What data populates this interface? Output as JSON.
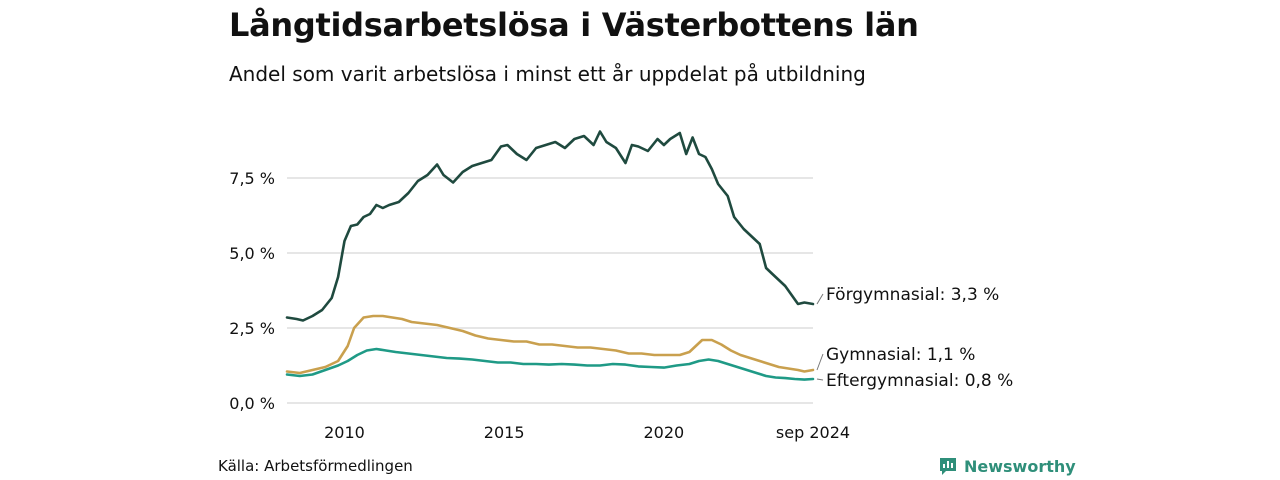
{
  "chart_data": {
    "type": "line",
    "title": "Långtidsarbetslösa i Västerbottens län",
    "subtitle": "Andel som varit arbetslösa i minst ett år uppdelat på utbildning",
    "y_ticks": [
      "0,0 %",
      "2,5 %",
      "5,0 %",
      "7,5 %"
    ],
    "y_tick_values": [
      0,
      2.5,
      5.0,
      7.5
    ],
    "x_ticks": [
      "2010",
      "2015",
      "2020",
      "sep 2024"
    ],
    "x_tick_values": [
      2010,
      2015,
      2020,
      2024.67
    ],
    "xlim": [
      2008.2,
      2024.67
    ],
    "ylim": [
      0,
      9.5
    ],
    "grid": true,
    "series": [
      {
        "name": "Förgymnasial",
        "end_label": "Förgymnasial: 3,3 %",
        "color": "#1f4a3f",
        "x": [
          2008.2,
          2008.5,
          2008.7,
          2009.0,
          2009.3,
          2009.6,
          2009.8,
          2010.0,
          2010.2,
          2010.4,
          2010.6,
          2010.8,
          2011.0,
          2011.2,
          2011.4,
          2011.7,
          2012.0,
          2012.3,
          2012.6,
          2012.9,
          2013.1,
          2013.4,
          2013.7,
          2014.0,
          2014.3,
          2014.6,
          2014.9,
          2015.1,
          2015.4,
          2015.7,
          2016.0,
          2016.3,
          2016.6,
          2016.9,
          2017.2,
          2017.5,
          2017.8,
          2018.0,
          2018.2,
          2018.5,
          2018.8,
          2019.0,
          2019.2,
          2019.5,
          2019.8,
          2020.0,
          2020.2,
          2020.5,
          2020.7,
          2020.9,
          2021.1,
          2021.3,
          2021.5,
          2021.7,
          2022.0,
          2022.2,
          2022.5,
          2022.7,
          2023.0,
          2023.2,
          2023.4,
          2023.6,
          2023.8,
          2024.0,
          2024.2,
          2024.4,
          2024.67
        ],
        "values": [
          2.85,
          2.8,
          2.75,
          2.9,
          3.1,
          3.5,
          4.2,
          5.4,
          5.9,
          5.95,
          6.2,
          6.3,
          6.6,
          6.5,
          6.6,
          6.7,
          7.0,
          7.4,
          7.6,
          7.95,
          7.6,
          7.35,
          7.7,
          7.9,
          8.0,
          8.1,
          8.55,
          8.6,
          8.3,
          8.1,
          8.5,
          8.6,
          8.7,
          8.5,
          8.8,
          8.9,
          8.6,
          9.05,
          8.7,
          8.5,
          8.0,
          8.6,
          8.55,
          8.4,
          8.8,
          8.6,
          8.8,
          9.0,
          8.3,
          8.85,
          8.3,
          8.2,
          7.8,
          7.3,
          6.9,
          6.2,
          5.8,
          5.6,
          5.3,
          4.5,
          4.3,
          4.1,
          3.9,
          3.6,
          3.3,
          3.35,
          3.3
        ]
      },
      {
        "name": "Gymnasial",
        "end_label": "Gymnasial: 1,1 %",
        "color": "#c9a04e",
        "x": [
          2008.2,
          2008.6,
          2009.0,
          2009.4,
          2009.8,
          2010.1,
          2010.3,
          2010.6,
          2010.9,
          2011.2,
          2011.5,
          2011.8,
          2012.1,
          2012.5,
          2012.9,
          2013.3,
          2013.7,
          2014.1,
          2014.5,
          2014.9,
          2015.3,
          2015.7,
          2016.1,
          2016.5,
          2016.9,
          2017.3,
          2017.7,
          2018.1,
          2018.5,
          2018.9,
          2019.3,
          2019.7,
          2020.1,
          2020.5,
          2020.8,
          2021.0,
          2021.2,
          2021.5,
          2021.8,
          2022.1,
          2022.4,
          2022.7,
          2023.0,
          2023.3,
          2023.6,
          2023.9,
          2024.2,
          2024.4,
          2024.67
        ],
        "values": [
          1.05,
          1.0,
          1.1,
          1.2,
          1.4,
          1.9,
          2.5,
          2.85,
          2.9,
          2.9,
          2.85,
          2.8,
          2.7,
          2.65,
          2.6,
          2.5,
          2.4,
          2.25,
          2.15,
          2.1,
          2.05,
          2.05,
          1.95,
          1.95,
          1.9,
          1.85,
          1.85,
          1.8,
          1.75,
          1.65,
          1.65,
          1.6,
          1.6,
          1.6,
          1.7,
          1.9,
          2.1,
          2.1,
          1.95,
          1.75,
          1.6,
          1.5,
          1.4,
          1.3,
          1.2,
          1.15,
          1.1,
          1.05,
          1.1
        ]
      },
      {
        "name": "Eftergymnasial",
        "end_label": "Eftergymnasial: 0,8 %",
        "color": "#1f9a86",
        "x": [
          2008.2,
          2008.6,
          2009.0,
          2009.4,
          2009.8,
          2010.1,
          2010.4,
          2010.7,
          2011.0,
          2011.3,
          2011.6,
          2012.0,
          2012.4,
          2012.8,
          2013.2,
          2013.6,
          2014.0,
          2014.4,
          2014.8,
          2015.2,
          2015.6,
          2016.0,
          2016.4,
          2016.8,
          2017.2,
          2017.6,
          2018.0,
          2018.4,
          2018.8,
          2019.2,
          2019.6,
          2020.0,
          2020.4,
          2020.8,
          2021.1,
          2021.4,
          2021.7,
          2022.0,
          2022.3,
          2022.6,
          2022.9,
          2023.2,
          2023.5,
          2023.8,
          2024.1,
          2024.4,
          2024.67
        ],
        "values": [
          0.95,
          0.9,
          0.95,
          1.1,
          1.25,
          1.4,
          1.6,
          1.75,
          1.8,
          1.75,
          1.7,
          1.65,
          1.6,
          1.55,
          1.5,
          1.48,
          1.45,
          1.4,
          1.35,
          1.35,
          1.3,
          1.3,
          1.28,
          1.3,
          1.28,
          1.25,
          1.25,
          1.3,
          1.28,
          1.22,
          1.2,
          1.18,
          1.25,
          1.3,
          1.4,
          1.45,
          1.4,
          1.3,
          1.2,
          1.1,
          1.0,
          0.9,
          0.85,
          0.83,
          0.8,
          0.78,
          0.8
        ]
      }
    ]
  },
  "source": "Källa: Arbetsförmedlingen",
  "brand": {
    "name": "Newsworthy",
    "icon": "newsworthy-logo-icon",
    "color": "#2f8f7a"
  }
}
